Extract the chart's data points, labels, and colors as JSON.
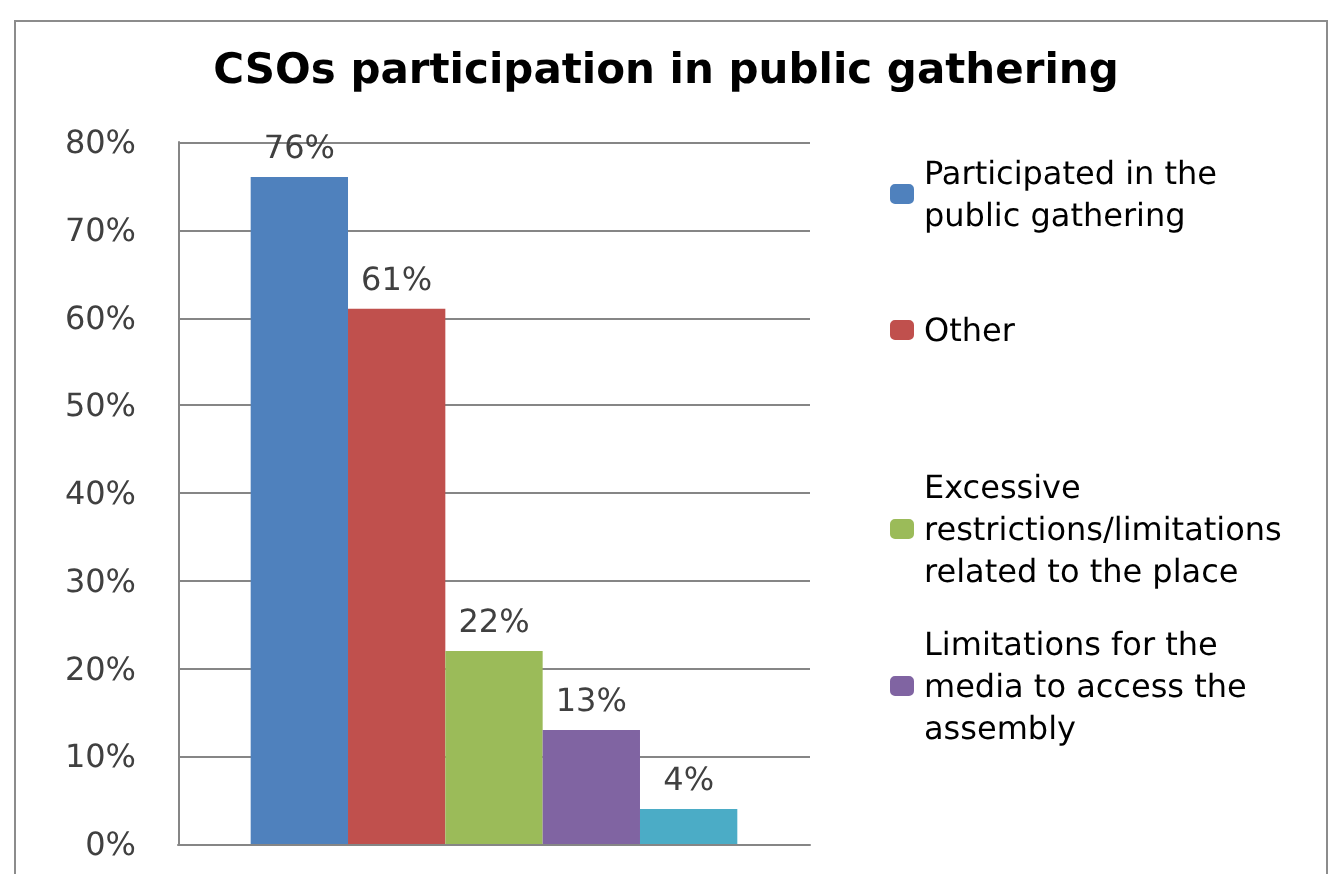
{
  "chart_data": {
    "type": "bar",
    "title": "CSOs participation in public gathering",
    "categories": [
      null
    ],
    "series": [
      {
        "name": "Participated in the public gathering",
        "color": "#4f81bd",
        "values": [
          76
        ],
        "value_labels": [
          "76%"
        ]
      },
      {
        "name": "Other",
        "color": "#c0504d",
        "values": [
          61
        ],
        "value_labels": [
          "61%"
        ]
      },
      {
        "name": "Excessive restrictions/limitations related to the place",
        "color": "#9bbb59",
        "values": [
          22
        ],
        "value_labels": [
          "22%"
        ]
      },
      {
        "name": "Limitations for the media to access the assembly",
        "color": "#8064a2",
        "values": [
          13
        ],
        "value_labels": [
          "13%"
        ]
      },
      {
        "color": "#4bacc6",
        "values": [
          4
        ],
        "value_labels": [
          "4%"
        ]
      }
    ],
    "ylim": [
      0,
      80
    ],
    "yticks": [
      {
        "value": 0,
        "label": "0%"
      },
      {
        "value": 10,
        "label": "10%"
      },
      {
        "value": 20,
        "label": "20%"
      },
      {
        "value": 30,
        "label": "30%"
      },
      {
        "value": 40,
        "label": "40%"
      },
      {
        "value": 50,
        "label": "50%"
      },
      {
        "value": 60,
        "label": "60%"
      },
      {
        "value": 70,
        "label": "70%"
      },
      {
        "value": 80,
        "label": "80%"
      }
    ],
    "grid": "y",
    "legend": "right"
  }
}
